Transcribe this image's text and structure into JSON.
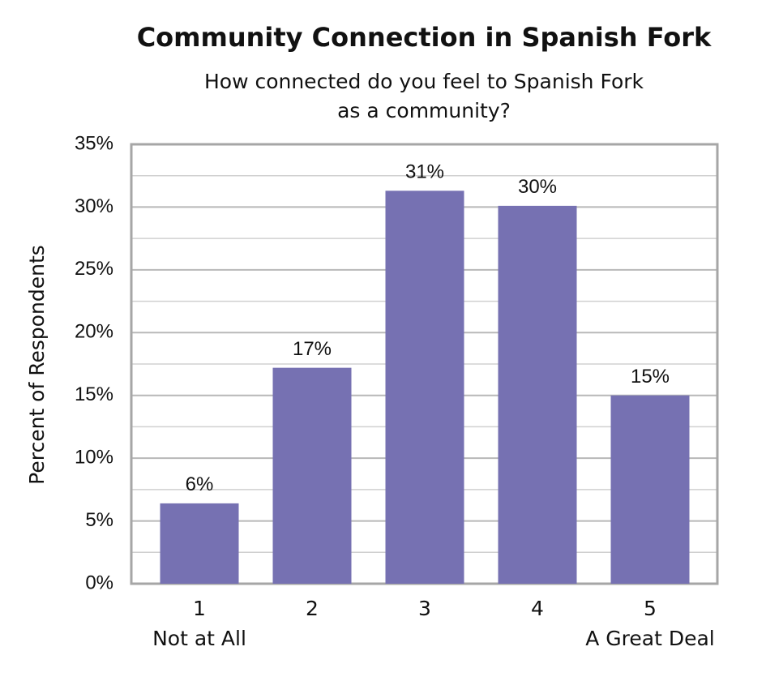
{
  "chart_data": {
    "type": "bar",
    "title": "Community Connection in Spanish Fork",
    "subtitle": [
      "How connected do you feel to Spanish Fork",
      "as a community?"
    ],
    "y_label": "Percent of Respondents",
    "categories": [
      "1",
      "2",
      "3",
      "4",
      "5"
    ],
    "category_sublabels": [
      "Not at All",
      null,
      null,
      null,
      "A Great Deal"
    ],
    "values": [
      6.4,
      17.2,
      31.3,
      30.1,
      15.0
    ],
    "value_labels": [
      "6%",
      "17%",
      "31%",
      "30%",
      "15%"
    ],
    "color": "#7671b2",
    "ylim": [
      0,
      35
    ],
    "yticks": [
      {
        "value": 0,
        "label": "0%"
      },
      {
        "value": 5,
        "label": "5%"
      },
      {
        "value": 10,
        "label": "10%"
      },
      {
        "value": 15,
        "label": "15%"
      },
      {
        "value": 20,
        "label": "20%"
      },
      {
        "value": 25,
        "label": "25%"
      },
      {
        "value": 30,
        "label": "30%"
      },
      {
        "value": 35,
        "label": "35%"
      }
    ],
    "minor_yticks": [
      2.5,
      7.5,
      12.5,
      17.5,
      22.5,
      27.5,
      32.5
    ],
    "grid": true
  }
}
